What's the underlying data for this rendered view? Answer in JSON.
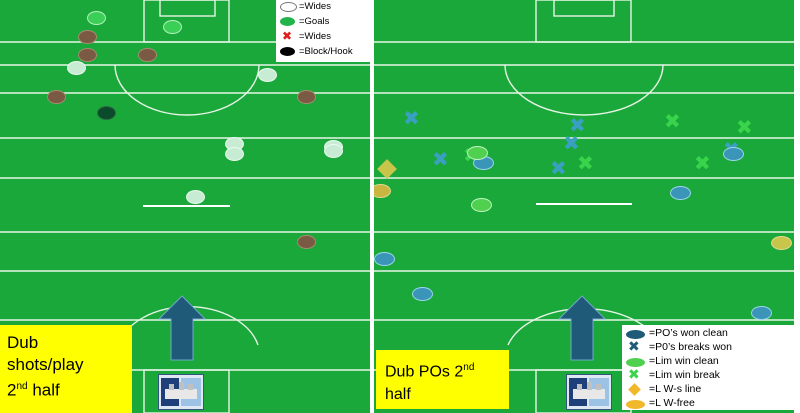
{
  "colors": {
    "pitch": "#1aa83a",
    "line": "#e6f5e6",
    "arrow": "#1f5a78",
    "label_bg": "#ffff00",
    "wide_white": "#c7ecd3",
    "goal_green": "#3ccf57",
    "point_brown": "#7a5a43",
    "block_dark": "#0b4a2a",
    "po_clean_blue": "#3b95b8",
    "po_break_x": "#3aa0c0",
    "lim_clean_green": "#4fd04f",
    "lim_break_x": "#39d44b",
    "lw_line_diamond": "#c8c64a",
    "lw_free_gold": "#c8b640"
  },
  "left_panel": {
    "label_line1": "Dub",
    "label_line2": "shots/play",
    "label_line3_pre": "2",
    "label_line3_sup": "nd",
    "label_line3_post": " half",
    "legend": [
      {
        "text": "=Wides",
        "icon": "white-circle"
      },
      {
        "text": "=Goals",
        "icon": "green-circle"
      },
      {
        "text": "=Wides",
        "icon": "red-x"
      },
      {
        "text": "=Block/Hook",
        "icon": "black-circle"
      }
    ]
  },
  "right_panel": {
    "label_line1_pre": "Dub POs 2",
    "label_line1_sup": "nd",
    "label_line2": "half",
    "legend": [
      {
        "text": "=PO’s won clean",
        "icon": "blue-ellipse"
      },
      {
        "text": "=P0’s breaks won",
        "icon": "blue-x"
      },
      {
        "text": "=Lim win clean",
        "icon": "green-ellipse"
      },
      {
        "text": "=Lim win break",
        "icon": "green-x"
      },
      {
        "text": "=L W-s line",
        "icon": "gold-diamond"
      },
      {
        "text": "=L W-free",
        "icon": "gold-ellipse"
      }
    ]
  }
}
